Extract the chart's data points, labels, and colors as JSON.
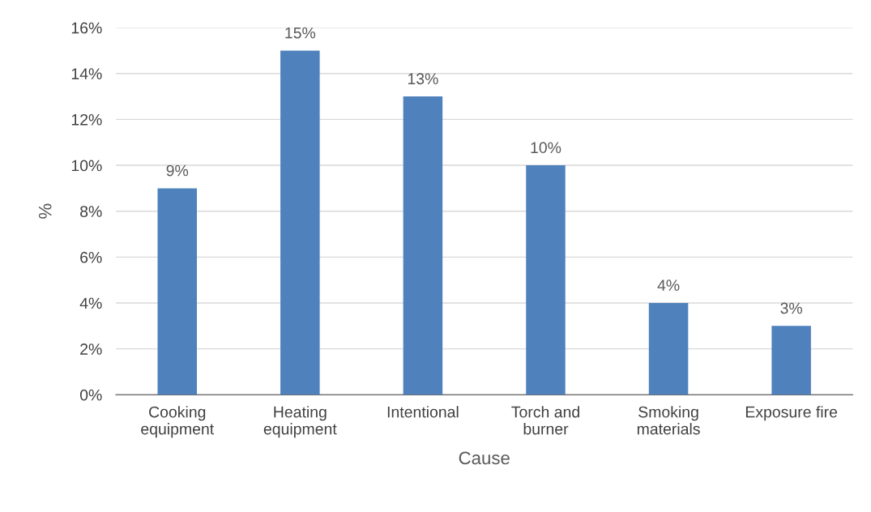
{
  "chart_data": {
    "type": "bar",
    "categories": [
      "Cooking\nequipment",
      "Heating\nequipment",
      "Intentional",
      "Torch and\nburner",
      "Smoking\nmaterials",
      "Exposure fire"
    ],
    "values": [
      9,
      15,
      13,
      10,
      4,
      3
    ],
    "value_labels": [
      "9%",
      "15%",
      "13%",
      "10%",
      "4%",
      "3%"
    ],
    "color": "#4f81bd",
    "xlabel": "Cause",
    "ylabel": "%",
    "ylim": [
      0,
      16
    ],
    "yticks": [
      {
        "value": 0,
        "label": "0%"
      },
      {
        "value": 2,
        "label": "2%"
      },
      {
        "value": 4,
        "label": "4%"
      },
      {
        "value": 6,
        "label": "6%"
      },
      {
        "value": 8,
        "label": "8%"
      },
      {
        "value": 10,
        "label": "10%"
      },
      {
        "value": 12,
        "label": "12%"
      },
      {
        "value": 14,
        "label": "14%"
      },
      {
        "value": 16,
        "label": "16%"
      }
    ],
    "grid": "y"
  }
}
